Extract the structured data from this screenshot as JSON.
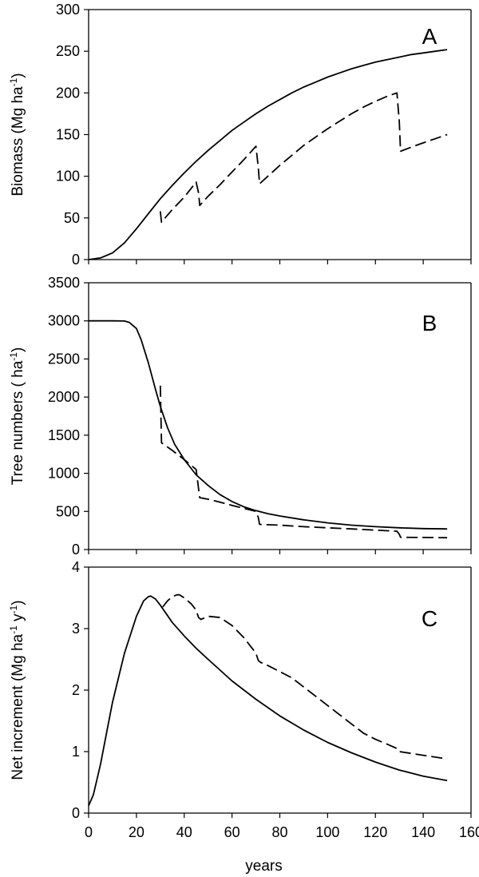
{
  "chart_data": [
    {
      "type": "line",
      "panel": "A",
      "ylabel": "Biomass (Mg ha",
      "ylabel_sup": "-1",
      "ylabel_end": ")",
      "xlim": [
        0,
        160
      ],
      "ylim": [
        0,
        300
      ],
      "yticks": [
        0,
        50,
        100,
        150,
        200,
        250,
        300
      ],
      "series": [
        {
          "style": "solid",
          "x": [
            0,
            5,
            10,
            15,
            20,
            25,
            30,
            35,
            40,
            45,
            50,
            55,
            60,
            65,
            70,
            75,
            80,
            85,
            90,
            95,
            100,
            105,
            110,
            115,
            120,
            125,
            130,
            135,
            140,
            145,
            150
          ],
          "y": [
            0,
            2,
            8,
            20,
            37,
            55,
            73,
            89,
            104,
            118,
            131,
            143,
            155,
            165,
            175,
            184,
            192,
            200,
            207,
            213,
            219,
            224,
            229,
            233,
            237,
            240,
            243,
            246,
            248,
            250,
            252
          ]
        },
        {
          "style": "dashed",
          "x": [
            30,
            30.5,
            35,
            40,
            45,
            46,
            46.5,
            50,
            55,
            60,
            65,
            70,
            71,
            71.5,
            75,
            80,
            85,
            90,
            95,
            100,
            105,
            110,
            115,
            120,
            125,
            129,
            130,
            130.5,
            135,
            140,
            145,
            150
          ],
          "y": [
            58,
            45,
            60,
            75,
            93,
            80,
            65,
            76,
            90,
            105,
            120,
            136,
            110,
            91,
            100,
            113,
            125,
            137,
            147,
            157,
            166,
            175,
            183,
            190,
            196,
            200,
            165,
            130,
            135,
            140,
            145,
            150
          ]
        }
      ]
    },
    {
      "type": "line",
      "panel": "B",
      "ylabel": "Tree numbers ( ha",
      "ylabel_sup": "-1",
      "ylabel_end": ")",
      "xlim": [
        0,
        160
      ],
      "ylim": [
        0,
        3500
      ],
      "yticks": [
        0,
        500,
        1000,
        1500,
        2000,
        2500,
        3000,
        3500
      ],
      "series": [
        {
          "style": "solid",
          "x": [
            0,
            5,
            10,
            15,
            17,
            20,
            22,
            25,
            28,
            30,
            33,
            36,
            40,
            45,
            50,
            55,
            60,
            65,
            70,
            75,
            80,
            90,
            100,
            110,
            120,
            130,
            140,
            150
          ],
          "y": [
            3000,
            3000,
            3000,
            2998,
            2980,
            2900,
            2750,
            2450,
            2100,
            1880,
            1600,
            1380,
            1180,
            980,
            840,
            720,
            630,
            560,
            510,
            470,
            440,
            390,
            350,
            320,
            300,
            285,
            275,
            270
          ]
        },
        {
          "style": "dashed",
          "x": [
            30,
            30.5,
            35,
            40,
            45,
            46,
            46.5,
            50,
            55,
            60,
            65,
            70,
            71,
            71.5,
            80,
            90,
            100,
            110,
            120,
            129,
            130,
            130.5,
            140,
            150
          ],
          "y": [
            2150,
            1400,
            1300,
            1180,
            1050,
            800,
            680,
            660,
            620,
            580,
            540,
            500,
            420,
            330,
            320,
            300,
            285,
            270,
            255,
            240,
            200,
            160,
            158,
            155
          ]
        }
      ]
    },
    {
      "type": "line",
      "panel": "C",
      "ylabel": "Net increment  (Mg ha",
      "ylabel_sup1": "-1",
      "ylabel_mid": " y",
      "ylabel_sup2": "-1",
      "ylabel_end": ")",
      "xlabel": "years",
      "xlim": [
        0,
        160
      ],
      "ylim": [
        0,
        4
      ],
      "yticks": [
        0,
        1,
        2,
        3,
        4
      ],
      "xticks": [
        0,
        20,
        40,
        60,
        80,
        100,
        120,
        140,
        160
      ],
      "series": [
        {
          "style": "solid",
          "x": [
            0,
            2,
            5,
            8,
            10,
            15,
            20,
            23,
            25,
            26,
            28,
            30,
            35,
            40,
            45,
            50,
            60,
            70,
            80,
            90,
            100,
            110,
            120,
            130,
            140,
            150
          ],
          "y": [
            0.12,
            0.3,
            0.8,
            1.4,
            1.8,
            2.6,
            3.2,
            3.45,
            3.52,
            3.53,
            3.48,
            3.38,
            3.1,
            2.88,
            2.68,
            2.5,
            2.15,
            1.85,
            1.58,
            1.35,
            1.15,
            0.98,
            0.83,
            0.7,
            0.6,
            0.53
          ]
        },
        {
          "style": "dashed",
          "x": [
            31,
            33,
            35,
            37,
            38,
            40,
            43,
            45,
            46,
            47,
            50,
            55,
            60,
            65,
            70,
            71,
            72,
            75,
            80,
            85,
            90,
            95,
            100,
            105,
            110,
            115,
            120,
            125,
            129,
            130,
            135,
            140,
            145,
            150
          ],
          "y": [
            3.35,
            3.45,
            3.52,
            3.55,
            3.55,
            3.5,
            3.4,
            3.3,
            3.18,
            3.15,
            3.2,
            3.18,
            3.05,
            2.85,
            2.6,
            2.48,
            2.45,
            2.4,
            2.3,
            2.2,
            2.05,
            1.9,
            1.75,
            1.6,
            1.45,
            1.3,
            1.2,
            1.12,
            1.05,
            1.0,
            0.97,
            0.94,
            0.91,
            0.88
          ]
        }
      ]
    }
  ]
}
